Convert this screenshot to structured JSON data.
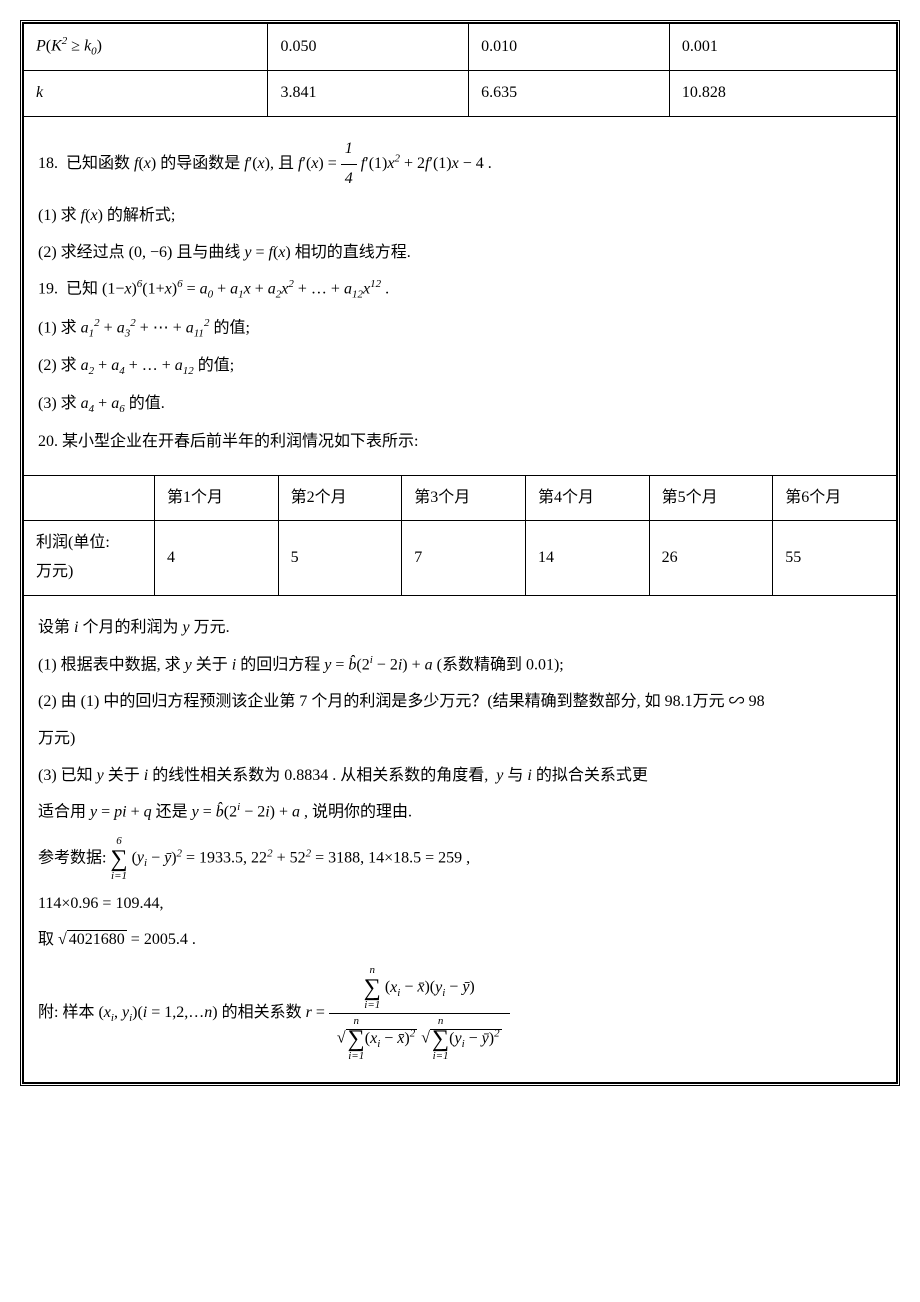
{
  "chi_table": {
    "headers": [
      "P(K² ≥ k₀)",
      "0.050",
      "0.010",
      "0.001"
    ],
    "row2": [
      "k",
      "3.841",
      "6.635",
      "10.828"
    ]
  },
  "q18": {
    "stem": "18.  已知函数 f(x) 的导函数是 f′(x), 且 f′(x) = ¼ f′(1)x² + 2f′(1)x − 4 .",
    "part1": "(1) 求 f(x) 的解析式;",
    "part2": "(2) 求经过点 (0, −6) 且与曲线 y = f(x) 相切的直线方程."
  },
  "q19": {
    "stem": "19.  已知 (1−x)⁶(1+x)⁶ = a₀ + a₁x + a₂x² + … + a₁₂x¹² .",
    "part1": "(1) 求 a₁² + a₃² + ⋯ + a₁₁² 的值;",
    "part2": "(2) 求 a₂ + a₄ + … + a₁₂ 的值;",
    "part3": "(3) 求 a₄ + a₆ 的值."
  },
  "q20": {
    "stem": "20.  某小型企业在开春后前半年的利润情况如下表所示:",
    "month_headers": [
      "",
      "第1个月",
      "第2个月",
      "第3个月",
      "第4个月",
      "第5个月",
      "第6个月"
    ],
    "profit_label": "利润(单位:",
    "profit_label2": "万元)",
    "profit_values": [
      "4",
      "5",
      "7",
      "14",
      "26",
      "55"
    ],
    "after_table": "设第 i 个月的利润为 y 万元.",
    "part1": "(1) 根据表中数据, 求 y 关于 i 的回归方程 y = b̂(2ⁱ − 2i) + a (系数精确到 0.01);",
    "part2a": "(2) 由 (1) 中的回归方程预测该企业第 7 个月的利润是多少万元？(结果精确到整数部分, 如 98.1万元 ∽ 98",
    "part2b": "万元)",
    "part3a": "(3) 已知 y 关于 i 的线性相关系数为 0.8834 . 从相关系数的角度看,  y 与 i 的拟合关系式更",
    "part3b": "适合用 y = pi + q 还是 y = b̂(2ⁱ − 2i) + a , 说明你的理由.",
    "ref_label": "参考数据:",
    "ref1": "∑(yᵢ − ȳ)² = 1933.5, 22² + 52² = 3188, 14×18.5 = 259 ,",
    "ref2": "114×0.96 = 109.44,",
    "ref3": "取 √4021680 = 2005.4 .",
    "appendix_label": "附: 样本 (xᵢ, yᵢ)(i = 1,2,…n) 的相关系数 r ="
  }
}
